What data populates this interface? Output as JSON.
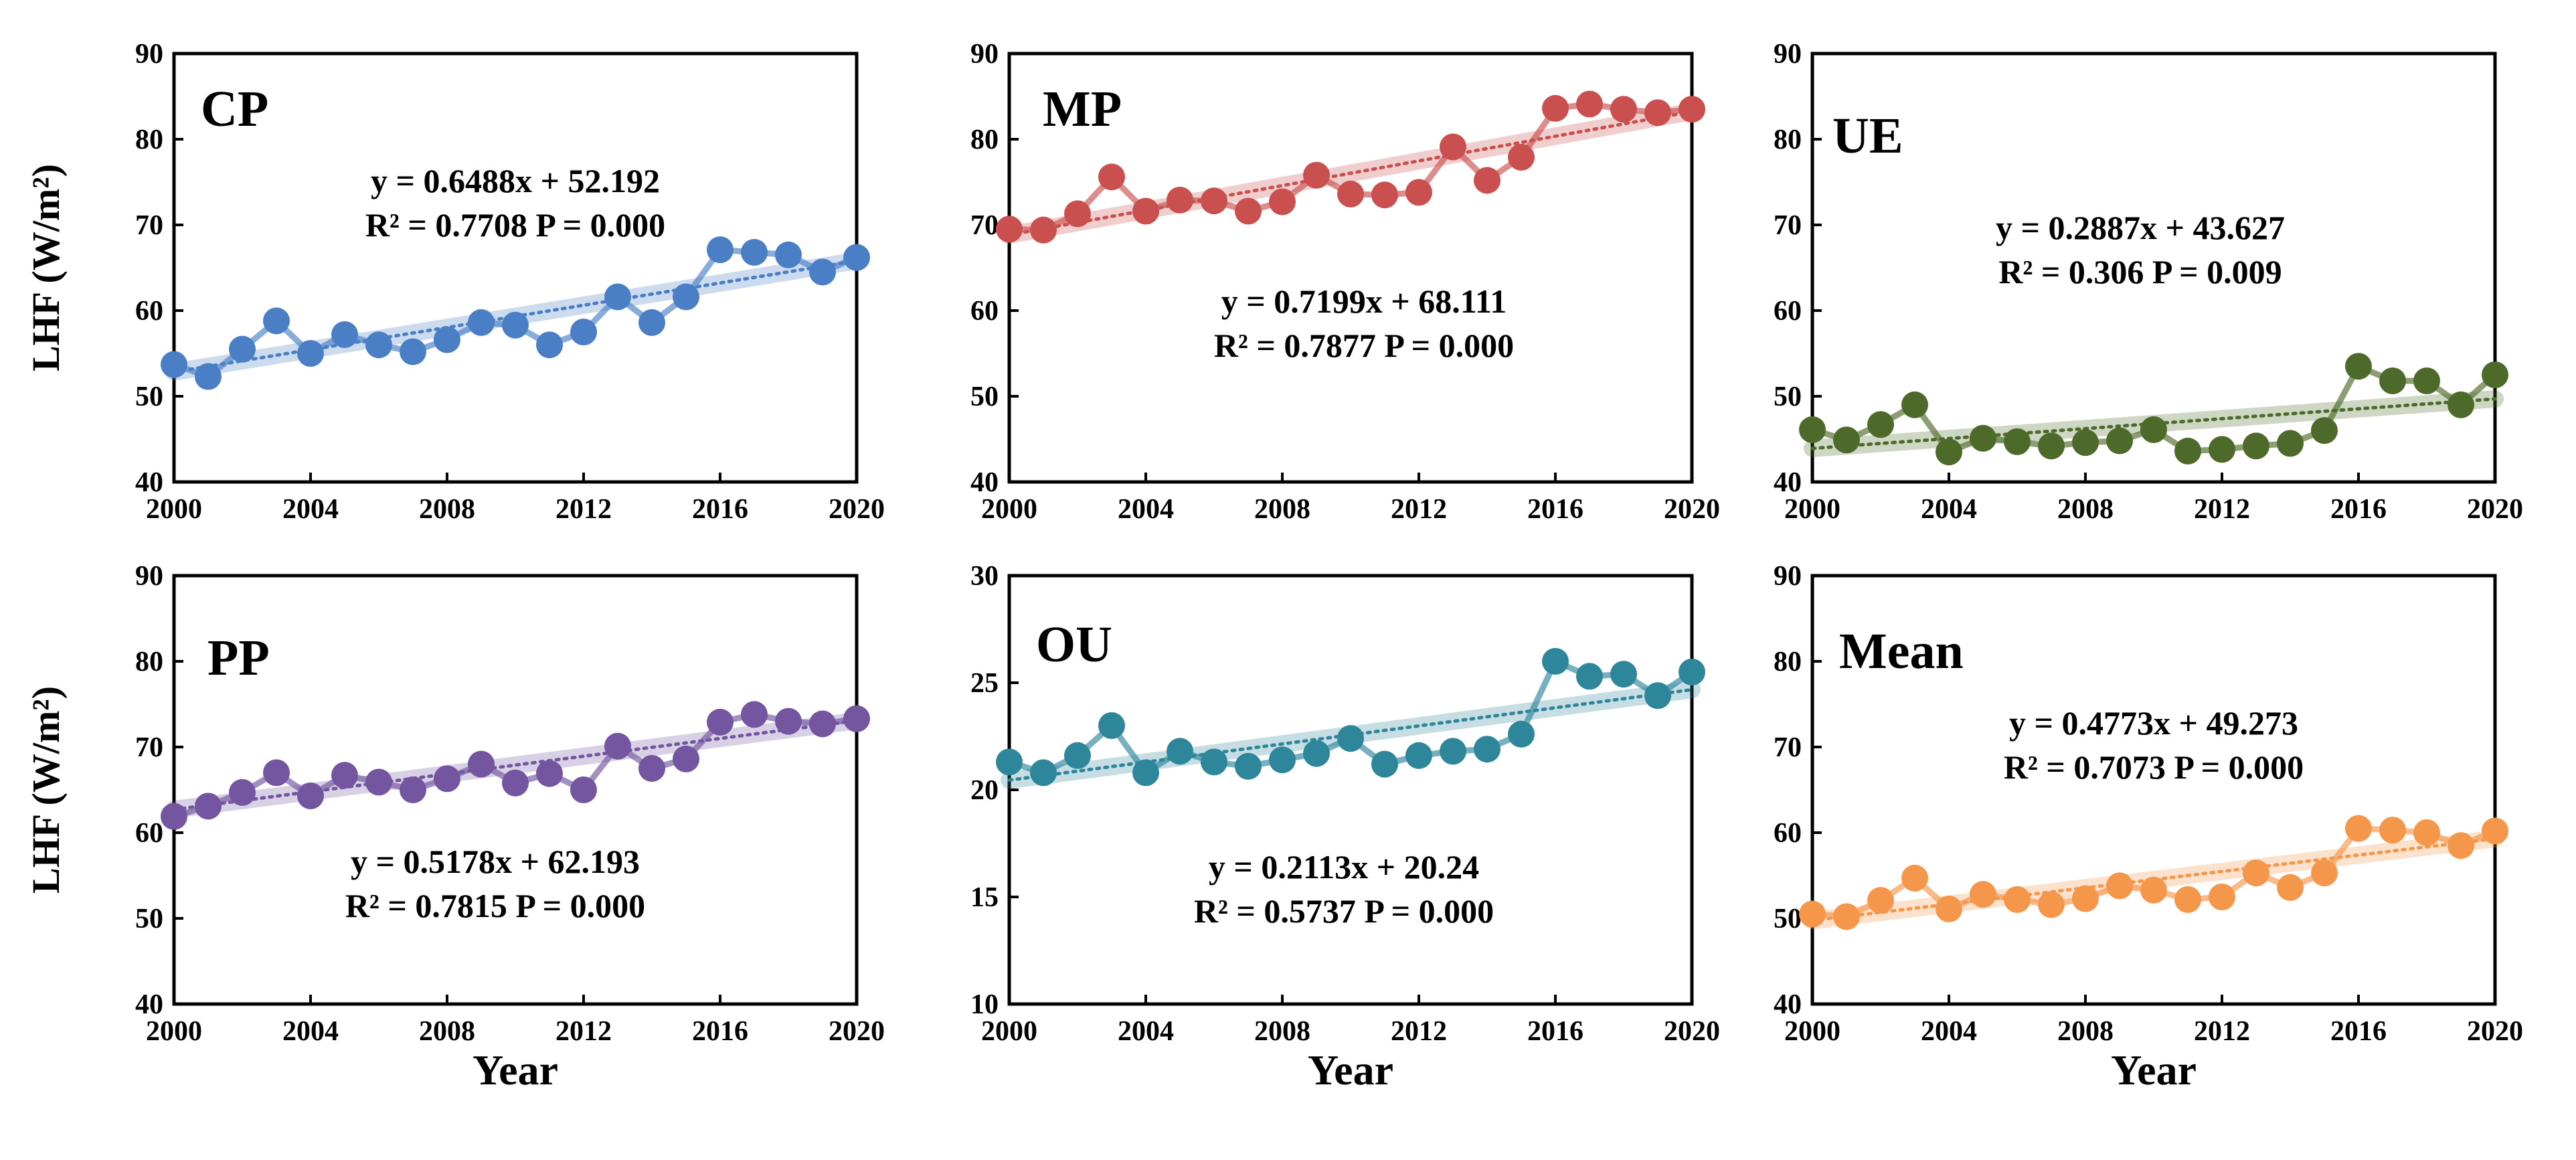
{
  "chart_data": [
    {
      "type": "line",
      "title": "CP",
      "xlabel": "",
      "ylabel": "LHF (W/m²)",
      "xlim": [
        2000,
        2020
      ],
      "ylim": [
        40,
        90
      ],
      "xticks": [
        "2000",
        "2004",
        "2008",
        "2012",
        "2016",
        "2020"
      ],
      "yticks": [
        "40",
        "50",
        "60",
        "70",
        "80",
        "90"
      ],
      "equation": "y = 0.6488x + 52.192",
      "stats": "R² = 0.7708  P = 0.000",
      "trend": {
        "slope": 0.6488,
        "intercept": 52.192
      },
      "color": "#4a7fc6",
      "series": [
        {
          "x": [
            2000,
            2001,
            2002,
            2003,
            2004,
            2005,
            2006,
            2007,
            2008,
            2009,
            2010,
            2011,
            2012,
            2013,
            2014,
            2015,
            2016,
            2017,
            2018,
            2019,
            2020
          ],
          "values": [
            53.7,
            52.3,
            55.5,
            58.8,
            55.0,
            57.2,
            56.0,
            55.2,
            56.6,
            58.6,
            58.3,
            56.0,
            57.5,
            61.6,
            58.6,
            61.6,
            67.1,
            66.8,
            66.5,
            64.5,
            66.2
          ]
        }
      ]
    },
    {
      "type": "line",
      "title": "MP",
      "xlabel": "",
      "ylabel": "",
      "xlim": [
        2000,
        2020
      ],
      "ylim": [
        40,
        90
      ],
      "xticks": [
        "2000",
        "2004",
        "2008",
        "2012",
        "2016",
        "2020"
      ],
      "yticks": [
        "40",
        "50",
        "60",
        "70",
        "80",
        "90"
      ],
      "equation": "y = 0.7199x + 68.111",
      "stats": "R² = 0.7877  P = 0.000",
      "trend": {
        "slope": 0.7199,
        "intercept": 68.111
      },
      "color": "#c9504f",
      "series": [
        {
          "x": [
            2000,
            2001,
            2002,
            2003,
            2004,
            2005,
            2006,
            2007,
            2008,
            2009,
            2010,
            2011,
            2012,
            2013,
            2014,
            2015,
            2016,
            2017,
            2018,
            2019,
            2020
          ],
          "values": [
            69.5,
            69.4,
            71.3,
            75.6,
            71.6,
            72.9,
            72.8,
            71.6,
            72.7,
            75.8,
            73.6,
            73.5,
            73.8,
            79.1,
            75.2,
            77.9,
            83.6,
            84.1,
            83.5,
            83.1,
            83.5
          ]
        }
      ]
    },
    {
      "type": "line",
      "title": "UE",
      "xlabel": "",
      "ylabel": "",
      "xlim": [
        2000,
        2020
      ],
      "ylim": [
        40,
        90
      ],
      "xticks": [
        "2000",
        "2004",
        "2008",
        "2012",
        "2016",
        "2020"
      ],
      "yticks": [
        "40",
        "50",
        "60",
        "70",
        "80",
        "90"
      ],
      "equation": "y = 0.2887x + 43.627",
      "stats": "R² = 0.306  P = 0.009",
      "trend": {
        "slope": 0.2887,
        "intercept": 43.627
      },
      "color": "#4e6a2a",
      "series": [
        {
          "x": [
            2000,
            2001,
            2002,
            2003,
            2004,
            2005,
            2006,
            2007,
            2008,
            2009,
            2010,
            2011,
            2012,
            2013,
            2014,
            2015,
            2016,
            2017,
            2018,
            2019,
            2020
          ],
          "values": [
            46.1,
            44.9,
            46.7,
            49.0,
            43.5,
            45.1,
            44.7,
            44.2,
            44.6,
            44.8,
            46.1,
            43.6,
            43.8,
            44.2,
            44.5,
            46.0,
            53.5,
            51.8,
            51.8,
            49.0,
            52.5
          ]
        }
      ]
    },
    {
      "type": "line",
      "title": "PP",
      "xlabel": "Year",
      "ylabel": "LHF (W/m²)",
      "xlim": [
        2000,
        2020
      ],
      "ylim": [
        40,
        90
      ],
      "xticks": [
        "2000",
        "2004",
        "2008",
        "2012",
        "2016",
        "2020"
      ],
      "yticks": [
        "40",
        "50",
        "60",
        "70",
        "80",
        "90"
      ],
      "equation": "y = 0.5178x + 62.193",
      "stats": "R² = 0.7815  P = 0.000",
      "trend": {
        "slope": 0.5178,
        "intercept": 62.193
      },
      "color": "#7355a0",
      "series": [
        {
          "x": [
            2000,
            2001,
            2002,
            2003,
            2004,
            2005,
            2006,
            2007,
            2008,
            2009,
            2010,
            2011,
            2012,
            2013,
            2014,
            2015,
            2016,
            2017,
            2018,
            2019,
            2020
          ],
          "values": [
            61.9,
            63.1,
            64.7,
            67.0,
            64.3,
            66.7,
            65.9,
            65.0,
            66.3,
            68.0,
            65.8,
            66.9,
            65.0,
            70.1,
            67.5,
            68.6,
            72.9,
            73.8,
            73.0,
            72.7,
            73.3
          ]
        }
      ]
    },
    {
      "type": "line",
      "title": "OU",
      "xlabel": "Year",
      "ylabel": "",
      "xlim": [
        2000,
        2020
      ],
      "ylim": [
        10,
        30
      ],
      "xticks": [
        "2000",
        "2004",
        "2008",
        "2012",
        "2016",
        "2020"
      ],
      "yticks": [
        "10",
        "15",
        "20",
        "25",
        "30"
      ],
      "equation": "y = 0.2113x + 20.24",
      "stats": "R² = 0.5737  P = 0.000",
      "trend": {
        "slope": 0.2113,
        "intercept": 20.24
      },
      "color": "#2e869b",
      "series": [
        {
          "x": [
            2000,
            2001,
            2002,
            2003,
            2004,
            2005,
            2006,
            2007,
            2008,
            2009,
            2010,
            2011,
            2012,
            2013,
            2014,
            2015,
            2016,
            2017,
            2018,
            2019,
            2020
          ],
          "values": [
            21.3,
            20.8,
            21.6,
            23.0,
            20.8,
            21.8,
            21.3,
            21.1,
            21.4,
            21.7,
            22.4,
            21.2,
            21.6,
            21.8,
            21.9,
            22.6,
            26.0,
            25.3,
            25.4,
            24.4,
            25.5
          ]
        }
      ]
    },
    {
      "type": "line",
      "title": "Mean",
      "xlabel": "Year",
      "ylabel": "",
      "xlim": [
        2000,
        2020
      ],
      "ylim": [
        40,
        90
      ],
      "xticks": [
        "2000",
        "2004",
        "2008",
        "2012",
        "2016",
        "2020"
      ],
      "yticks": [
        "40",
        "50",
        "60",
        "70",
        "80",
        "90"
      ],
      "equation": "y = 0.4773x + 49.273",
      "stats": "R² = 0.7073  P = 0.000",
      "trend": {
        "slope": 0.4773,
        "intercept": 49.273
      },
      "color": "#f4974a",
      "series": [
        {
          "x": [
            2000,
            2001,
            2002,
            2003,
            2004,
            2005,
            2006,
            2007,
            2008,
            2009,
            2010,
            2011,
            2012,
            2013,
            2014,
            2015,
            2016,
            2017,
            2018,
            2019,
            2020
          ],
          "values": [
            50.5,
            50.2,
            52.1,
            54.7,
            51.1,
            52.8,
            52.2,
            51.6,
            52.3,
            53.8,
            53.3,
            52.2,
            52.5,
            55.3,
            53.6,
            55.3,
            60.5,
            60.3,
            60.0,
            58.5,
            60.2
          ]
        }
      ]
    }
  ]
}
